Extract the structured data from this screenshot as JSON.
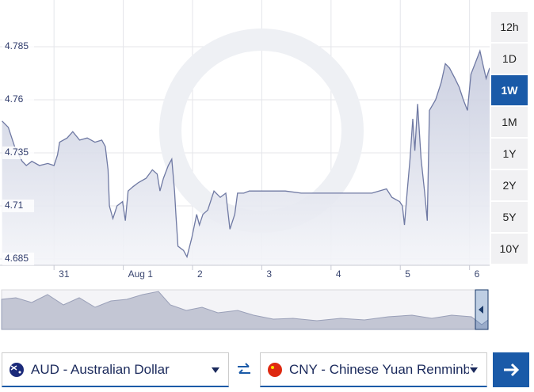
{
  "chart_data": {
    "type": "area",
    "x": [
      -0.75,
      -0.66,
      -0.57,
      -0.46,
      -0.4,
      -0.32,
      -0.21,
      -0.09,
      0,
      0.05,
      0.08,
      0.19,
      0.27,
      0.37,
      0.48,
      0.59,
      0.69,
      0.74,
      0.78,
      0.8,
      0.85,
      0.91,
      0.99,
      1.03,
      1.07,
      1.14,
      1.22,
      1.33,
      1.42,
      1.49,
      1.53,
      1.58,
      1.65,
      1.7,
      1.74,
      1.76,
      1.79,
      1.87,
      1.92,
      1.99,
      2.06,
      2.1,
      2.15,
      2.22,
      2.31,
      2.4,
      2.48,
      2.54,
      2.61,
      2.65,
      2.74,
      2.82,
      2.99,
      3.11,
      3.34,
      3.57,
      4.02,
      4.25,
      4.59,
      4.8,
      4.88,
      4.99,
      5.03,
      5.06,
      5.1,
      5.14,
      5.18,
      5.21,
      5.25,
      5.3,
      5.35,
      5.39,
      5.42,
      5.51,
      5.59,
      5.65,
      5.71,
      5.79,
      5.85,
      5.91,
      5.97,
      6.02,
      6.08,
      6.15,
      6.19,
      6.24,
      6.29
    ],
    "values": [
      4.75,
      4.747,
      4.738,
      4.731,
      4.729,
      4.731,
      4.729,
      4.73,
      4.729,
      4.734,
      4.74,
      4.742,
      4.745,
      4.741,
      4.742,
      4.74,
      4.741,
      4.738,
      4.727,
      4.71,
      4.704,
      4.71,
      4.712,
      4.703,
      4.717,
      4.719,
      4.721,
      4.723,
      4.727,
      4.725,
      4.717,
      4.723,
      4.729,
      4.732,
      4.717,
      4.706,
      4.691,
      4.689,
      4.686,
      4.695,
      4.706,
      4.701,
      4.706,
      4.708,
      4.717,
      4.714,
      4.716,
      4.699,
      4.706,
      4.716,
      4.716,
      4.717,
      4.717,
      4.717,
      4.717,
      4.716,
      4.716,
      4.716,
      4.716,
      4.718,
      4.714,
      4.712,
      4.71,
      4.701,
      4.717,
      4.732,
      4.751,
      4.736,
      4.758,
      4.732,
      4.717,
      4.703,
      4.755,
      4.76,
      4.768,
      4.777,
      4.775,
      4.77,
      4.766,
      4.76,
      4.755,
      4.772,
      4.777,
      4.783,
      4.777,
      4.77,
      4.775
    ],
    "color": "#6f79a3",
    "xlim": [
      -0.78,
      6.29
    ],
    "ylim": [
      4.682,
      4.807
    ],
    "xticks": [
      {
        "value": 0,
        "label": "31"
      },
      {
        "value": 1,
        "label": "Aug 1"
      },
      {
        "value": 2,
        "label": "2"
      },
      {
        "value": 3,
        "label": "3"
      },
      {
        "value": 4,
        "label": "4"
      },
      {
        "value": 5,
        "label": "5"
      },
      {
        "value": 6,
        "label": "6"
      }
    ],
    "yticks": [
      4.685,
      4.71,
      4.735,
      4.76,
      4.785
    ],
    "grid": true
  },
  "ranges": [
    "12h",
    "1D",
    "1W",
    "1M",
    "1Y",
    "2Y",
    "5Y",
    "10Y"
  ],
  "active_range": 2,
  "from_currency": "AUD - Australian Dollar",
  "to_currency": "CNY - Chinese Yuan Renminbi"
}
